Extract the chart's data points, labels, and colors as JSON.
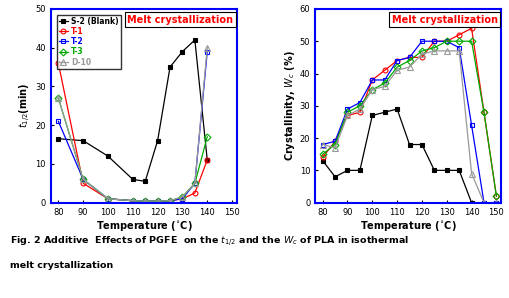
{
  "left_plot": {
    "title": "Melt crystallization",
    "xlabel": "Temperature (°C)",
    "ylabel": "t_{1/2}(min)",
    "xlim": [
      77,
      152
    ],
    "ylim": [
      0,
      50
    ],
    "xticks": [
      80,
      90,
      100,
      110,
      120,
      130,
      140,
      150
    ],
    "yticks": [
      0,
      10,
      20,
      30,
      40,
      50
    ],
    "series": {
      "S-2 (Blank)": {
        "x": [
          80,
          90,
          100,
          110,
          115,
          120,
          125,
          130,
          135,
          140
        ],
        "y": [
          16.5,
          16,
          12,
          6,
          5.5,
          16,
          35,
          39,
          42,
          11
        ],
        "color": "black",
        "marker": "s",
        "filled": true
      },
      "T-1": {
        "x": [
          80,
          90,
          100,
          110,
          115,
          120,
          125,
          130,
          135,
          140
        ],
        "y": [
          36,
          5,
          1.0,
          0.5,
          0.4,
          0.4,
          0.5,
          1.0,
          2.5,
          11
        ],
        "color": "red",
        "marker": "o",
        "filled": false
      },
      "T-2": {
        "x": [
          80,
          90,
          100,
          110,
          115,
          120,
          125,
          130,
          135,
          140
        ],
        "y": [
          21,
          6,
          1.0,
          0.5,
          0.4,
          0.4,
          0.5,
          1.0,
          5,
          39
        ],
        "color": "blue",
        "marker": "s",
        "filled": false
      },
      "T-3": {
        "x": [
          80,
          90,
          100,
          110,
          115,
          120,
          125,
          130,
          135,
          140
        ],
        "y": [
          27,
          6,
          1.0,
          0.5,
          0.4,
          0.4,
          0.5,
          1.5,
          5,
          17
        ],
        "color": "#00aa00",
        "marker": "D",
        "filled": false
      },
      "D-10": {
        "x": [
          80,
          90,
          100,
          110,
          115,
          120,
          125,
          130,
          135,
          140
        ],
        "y": [
          27,
          6,
          1.0,
          0.5,
          0.4,
          0.4,
          0.5,
          1.5,
          5,
          40
        ],
        "color": "#999999",
        "marker": "^",
        "filled": false
      }
    }
  },
  "right_plot": {
    "title": "Melt crystallization",
    "xlabel": "Temperature (°C)",
    "ylabel": "Crystallinity, W_c (%)",
    "xlim": [
      77,
      152
    ],
    "ylim": [
      0,
      60
    ],
    "xticks": [
      80,
      90,
      100,
      110,
      120,
      130,
      140,
      150
    ],
    "yticks": [
      0,
      10,
      20,
      30,
      40,
      50,
      60
    ],
    "series": {
      "S-2 (Blank)": {
        "x": [
          80,
          85,
          90,
          95,
          100,
          105,
          110,
          115,
          120,
          125,
          130,
          135,
          140,
          145,
          150
        ],
        "y": [
          13,
          8,
          10,
          10,
          27,
          28,
          29,
          18,
          18,
          10,
          10,
          10,
          0,
          0,
          0
        ],
        "color": "black",
        "marker": "s",
        "filled": true
      },
      "T-1": {
        "x": [
          80,
          85,
          90,
          95,
          100,
          105,
          110,
          115,
          120,
          125,
          130,
          135,
          140,
          145,
          150
        ],
        "y": [
          14,
          19,
          27,
          28,
          38,
          41,
          44,
          45,
          45,
          50,
          50,
          52,
          54,
          28,
          2
        ],
        "color": "red",
        "marker": "o",
        "filled": false
      },
      "T-2": {
        "x": [
          80,
          85,
          90,
          95,
          100,
          105,
          110,
          115,
          120,
          125,
          130,
          135,
          140,
          145,
          150
        ],
        "y": [
          18,
          19,
          29,
          31,
          38,
          38,
          44,
          45,
          50,
          50,
          50,
          48,
          24,
          0,
          0
        ],
        "color": "blue",
        "marker": "s",
        "filled": false
      },
      "T-3": {
        "x": [
          80,
          85,
          90,
          95,
          100,
          105,
          110,
          115,
          120,
          125,
          130,
          135,
          140,
          145,
          150
        ],
        "y": [
          15,
          18,
          28,
          30,
          35,
          37,
          42,
          44,
          47,
          48,
          50,
          50,
          50,
          28,
          2
        ],
        "color": "#00aa00",
        "marker": "D",
        "filled": false
      },
      "D-10": {
        "x": [
          80,
          85,
          90,
          95,
          100,
          105,
          110,
          115,
          120,
          125,
          130,
          135,
          140,
          145,
          150
        ],
        "y": [
          18,
          17,
          27,
          29,
          35,
          36,
          41,
          42,
          46,
          47,
          47,
          47,
          9,
          0,
          0
        ],
        "color": "#999999",
        "marker": "^",
        "filled": false
      }
    }
  },
  "legend_colors": {
    "S-2 (Blank)": "black",
    "T-1": "red",
    "T-2": "blue",
    "T-3": "#00aa00",
    "D-10": "#999999"
  },
  "caption_line1": "Fig. 2 Additive  Effects of PGFE  on the ",
  "caption_line2": " and the ",
  "caption_line3": " of PLA in isothermal",
  "caption_line4": "melt crystallization"
}
